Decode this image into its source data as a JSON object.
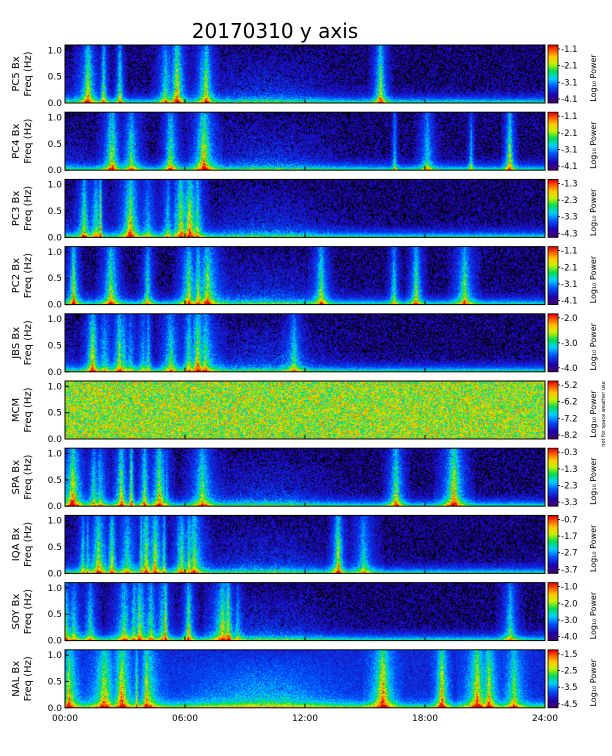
{
  "chart_data": {
    "type": "heatmap",
    "title": "20170310 y axis",
    "x_ticks": [
      "00:00",
      "06:00",
      "12:00",
      "18:00",
      "24:00"
    ],
    "x_range_hours": [
      0,
      24
    ],
    "y_ticks": [
      "0.0",
      "0.5",
      "1.0"
    ],
    "y_range_hz": [
      0,
      1.1
    ],
    "colorbar_label": "Log₁₀ Power",
    "panels": [
      {
        "station": "PC5 Bx",
        "ylabel": "Freq (Hz)",
        "cb_ticks": [
          "-1.1",
          "-2.1",
          "-3.1",
          "-4.1"
        ],
        "cb_note": ""
      },
      {
        "station": "PC4 Bx",
        "ylabel": "Freq (Hz)",
        "cb_ticks": [
          "-1.1",
          "-2.1",
          "-3.1",
          "-4.1"
        ],
        "cb_note": ""
      },
      {
        "station": "PC3 Bx",
        "ylabel": "Freq (Hz)",
        "cb_ticks": [
          "-1.3",
          "-2.3",
          "-3.3",
          "-4.3"
        ],
        "cb_note": ""
      },
      {
        "station": "PC2 Bx",
        "ylabel": "Freq (Hz)",
        "cb_ticks": [
          "-1.1",
          "-2.1",
          "-3.1",
          "-4.1"
        ],
        "cb_note": ""
      },
      {
        "station": "JBS Bx",
        "ylabel": "Freq (Hz)",
        "cb_ticks": [
          "-2.0",
          "-3.0",
          "-4.0"
        ],
        "cb_note": ""
      },
      {
        "station": "MCM",
        "ylabel": "Freq (Hz)",
        "cb_ticks": [
          "-5.2",
          "-6.2",
          "-7.2",
          "-8.2"
        ],
        "cb_note": "not for space weather use"
      },
      {
        "station": "SPA Bx",
        "ylabel": "Freq (Hz)",
        "cb_ticks": [
          "-0.3",
          "-1.3",
          "-2.3",
          "-3.3"
        ],
        "cb_note": ""
      },
      {
        "station": "IQA Bx",
        "ylabel": "Freq (Hz)",
        "cb_ticks": [
          "-0.7",
          "-1.7",
          "-2.7",
          "-3.7"
        ],
        "cb_note": ""
      },
      {
        "station": "SOY Bx",
        "ylabel": "Freq (Hz)",
        "cb_ticks": [
          "-1.0",
          "-2.0",
          "-3.0",
          "-4.0"
        ],
        "cb_note": ""
      },
      {
        "station": "NAL Bx",
        "ylabel": "Freq (Hz)",
        "cb_ticks": [
          "-1.5",
          "-2.5",
          "-3.5",
          "-4.5"
        ],
        "cb_note": ""
      }
    ]
  }
}
